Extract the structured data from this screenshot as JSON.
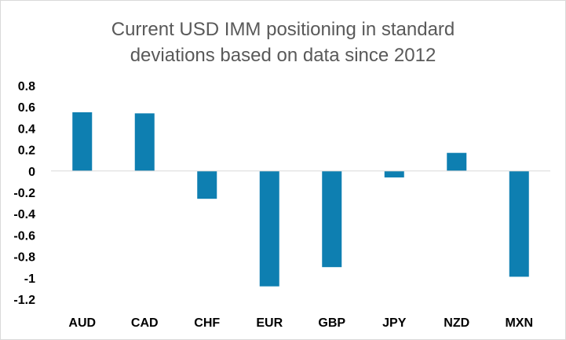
{
  "chart_data": {
    "type": "bar",
    "title_lines": [
      "Current USD IMM positioning in standard",
      "deviations based on data since 2012"
    ],
    "categories": [
      "AUD",
      "CAD",
      "CHF",
      "EUR",
      "GBP",
      "JPY",
      "NZD",
      "MXN"
    ],
    "values": [
      0.55,
      0.54,
      -0.26,
      -1.08,
      -0.9,
      -0.06,
      0.17,
      -0.99
    ],
    "ylim": [
      -1.2,
      0.8
    ],
    "yticks": [
      0.8,
      0.6,
      0.4,
      0.2,
      0,
      -0.2,
      -0.4,
      -0.6,
      -0.8,
      -1,
      -1.2
    ],
    "ytick_labels": [
      "0.8",
      "0.6",
      "0.4",
      "0.2",
      "0",
      "-0.2",
      "-0.4",
      "-0.6",
      "-0.8",
      "-1",
      "-1.2"
    ],
    "grid": false,
    "bar_color": "#0e7fb1",
    "axis_color": "#d9d9d9"
  }
}
